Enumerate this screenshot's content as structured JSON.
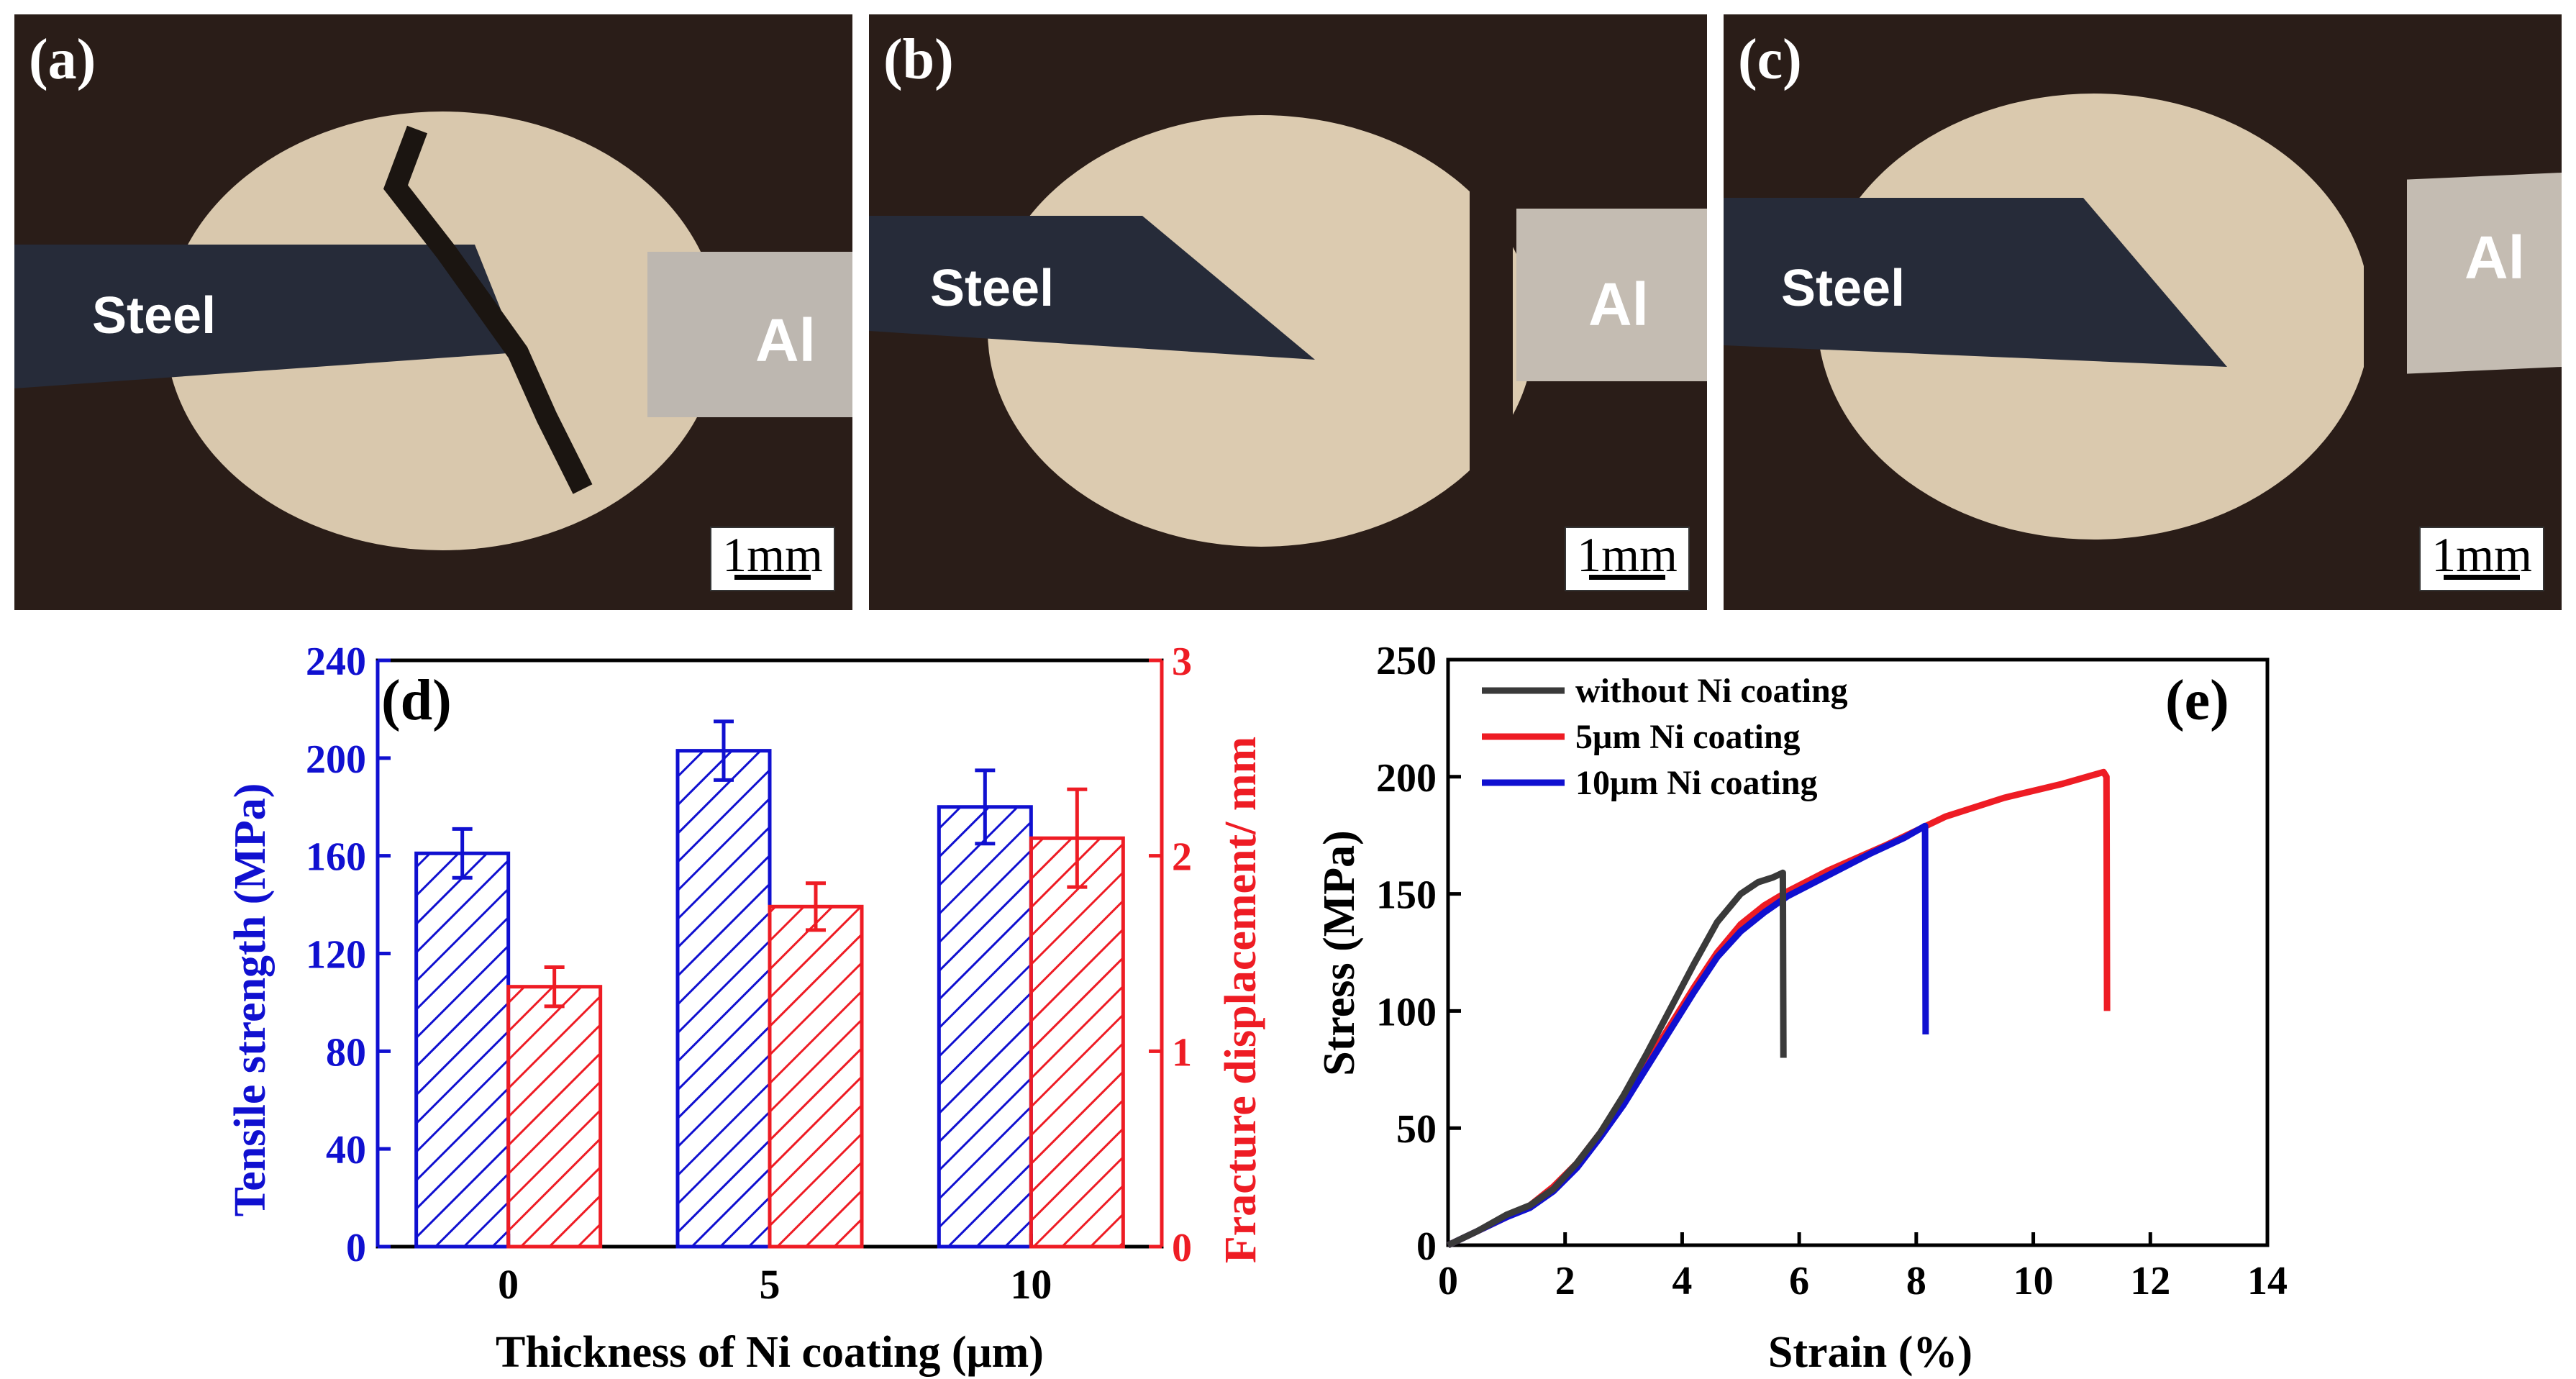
{
  "panels": [
    {
      "id": "a",
      "label": "(a)",
      "left_material": "Steel",
      "right_material": "Al",
      "scale": "1mm"
    },
    {
      "id": "b",
      "label": "(b)",
      "left_material": "Steel",
      "right_material": "Al",
      "scale": "1mm"
    },
    {
      "id": "c",
      "label": "(c)",
      "left_material": "Steel",
      "right_material": "Al",
      "scale": "1mm"
    }
  ],
  "colors": {
    "blue": "#1010d0",
    "red": "#ee1c24",
    "black": "#000000",
    "gray": "#3a3a3a"
  },
  "chart_data": [
    {
      "type": "bar",
      "label": "(d)",
      "xlabel": "Thickness of Ni coating (μm)",
      "categories": [
        "0",
        "5",
        "10"
      ],
      "series": [
        {
          "name": "Tensile strength (MPa)",
          "axis": "left",
          "values": [
            161,
            203,
            180
          ],
          "errors": [
            10,
            12,
            15
          ],
          "color": "#1010d0"
        },
        {
          "name": "Fracture displacement/ mm",
          "axis": "right",
          "values": [
            1.33,
            1.74,
            2.09
          ],
          "errors": [
            0.1,
            0.12,
            0.25
          ],
          "color": "#ee1c24"
        }
      ],
      "ylabel_left": "Tensile strength (MPa)",
      "ylabel_right": "Fracture displacement/ mm",
      "ylim_left": [
        0,
        240
      ],
      "yticks_left": [
        "0",
        "40",
        "80",
        "120",
        "160",
        "200",
        "240"
      ],
      "ylim_right": [
        0,
        3
      ],
      "yticks_right": [
        "0",
        "1",
        "2",
        "3"
      ]
    },
    {
      "type": "line",
      "label": "(e)",
      "xlabel": "Strain (%)",
      "ylabel": "Stress (MPa)",
      "xlim": [
        0,
        14
      ],
      "ylim": [
        0,
        250
      ],
      "xticks": [
        "0",
        "2",
        "4",
        "6",
        "8",
        "10",
        "12",
        "14"
      ],
      "yticks": [
        "0",
        "50",
        "100",
        "150",
        "200",
        "250"
      ],
      "legend_position": "top-left",
      "series": [
        {
          "name": "without Ni coating",
          "color": "#3a3a3a",
          "x": [
            0,
            0.5,
            1.0,
            1.4,
            1.8,
            2.2,
            2.6,
            3.0,
            3.4,
            3.8,
            4.2,
            4.6,
            5.0,
            5.3,
            5.55,
            5.72,
            5.73
          ],
          "y": [
            0,
            6,
            13,
            17,
            24,
            35,
            48,
            64,
            82,
            101,
            120,
            138,
            150,
            155,
            157,
            159,
            80
          ]
        },
        {
          "name": "5μm Ni coating",
          "color": "#ee1c24",
          "x": [
            0,
            0.5,
            1.0,
            1.4,
            1.8,
            2.2,
            2.6,
            3.0,
            3.4,
            3.8,
            4.2,
            4.6,
            5.0,
            5.4,
            5.8,
            6.5,
            7.5,
            8.5,
            9.5,
            10.5,
            11.2,
            11.25,
            11.26
          ],
          "y": [
            0,
            6,
            12,
            17,
            25,
            35,
            48,
            62,
            78,
            94,
            110,
            125,
            137,
            145,
            151,
            160,
            171,
            183,
            191,
            197,
            202,
            200,
            100
          ]
        },
        {
          "name": "10μm Ni coating",
          "color": "#1010d0",
          "x": [
            0,
            0.5,
            1.0,
            1.4,
            1.8,
            2.2,
            2.6,
            3.0,
            3.4,
            3.8,
            4.2,
            4.6,
            5.0,
            5.4,
            5.8,
            6.5,
            7.2,
            7.8,
            8.15,
            8.16
          ],
          "y": [
            0,
            6,
            12,
            16,
            23,
            33,
            46,
            60,
            76,
            92,
            108,
            123,
            134,
            142,
            149,
            158,
            167,
            174,
            179,
            90
          ]
        }
      ]
    }
  ]
}
